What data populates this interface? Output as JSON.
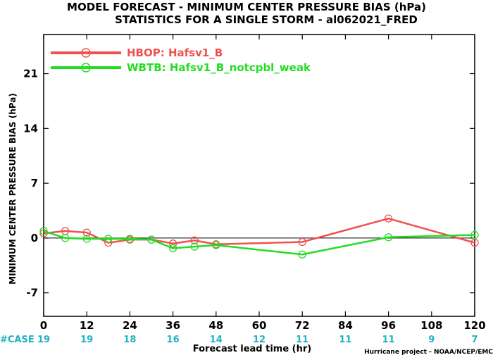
{
  "title_line1": "MODEL FORECAST - MINIMUM CENTER PRESSURE BIAS (hPa)",
  "title_line2": "STATISTICS FOR A SINGLE STORM - al062021_FRED",
  "case_label": "#CASE",
  "credit": "Hurricane project - NOAA/NCEP/EMC",
  "colors": {
    "series1": "#f05050",
    "series2": "#22dd22",
    "case": "#1fb3c4"
  },
  "chart_data": {
    "type": "line",
    "title": "MODEL FORECAST - MINIMUM CENTER PRESSURE BIAS (hPa)",
    "subtitle": "STATISTICS FOR A SINGLE STORM - al062021_FRED",
    "xlabel": "Forecast lead time (hr)",
    "ylabel": "MINIMUM CENTER PRESSURE BIAS (hPa)",
    "xlim": [
      0,
      120
    ],
    "ylim": [
      -10,
      26
    ],
    "xticks": [
      0,
      12,
      24,
      36,
      48,
      60,
      72,
      84,
      96,
      108,
      120
    ],
    "yticks": [
      -7,
      0,
      7,
      14,
      21
    ],
    "legend_position": "top-left",
    "cases": [
      19,
      19,
      18,
      16,
      14,
      12,
      11,
      11,
      11,
      9,
      7
    ],
    "series": [
      {
        "name": "HBOP: Hafsv1_B",
        "color": "#f05050",
        "x": [
          0,
          6,
          12,
          18,
          24,
          30,
          36,
          42,
          48,
          72,
          96,
          120
        ],
        "y": [
          0.6,
          0.9,
          0.7,
          -0.6,
          -0.2,
          -0.2,
          -0.7,
          -0.3,
          -0.8,
          -0.5,
          2.5,
          -0.6
        ]
      },
      {
        "name": "WBTB: Hafsv1_B_notcpbl_weak",
        "color": "#22dd22",
        "x": [
          0,
          6,
          12,
          18,
          24,
          30,
          36,
          42,
          48,
          72,
          96,
          120
        ],
        "y": [
          0.9,
          0.0,
          -0.1,
          -0.1,
          -0.1,
          -0.2,
          -1.3,
          -1.1,
          -0.9,
          -2.1,
          0.1,
          0.4
        ]
      }
    ]
  }
}
